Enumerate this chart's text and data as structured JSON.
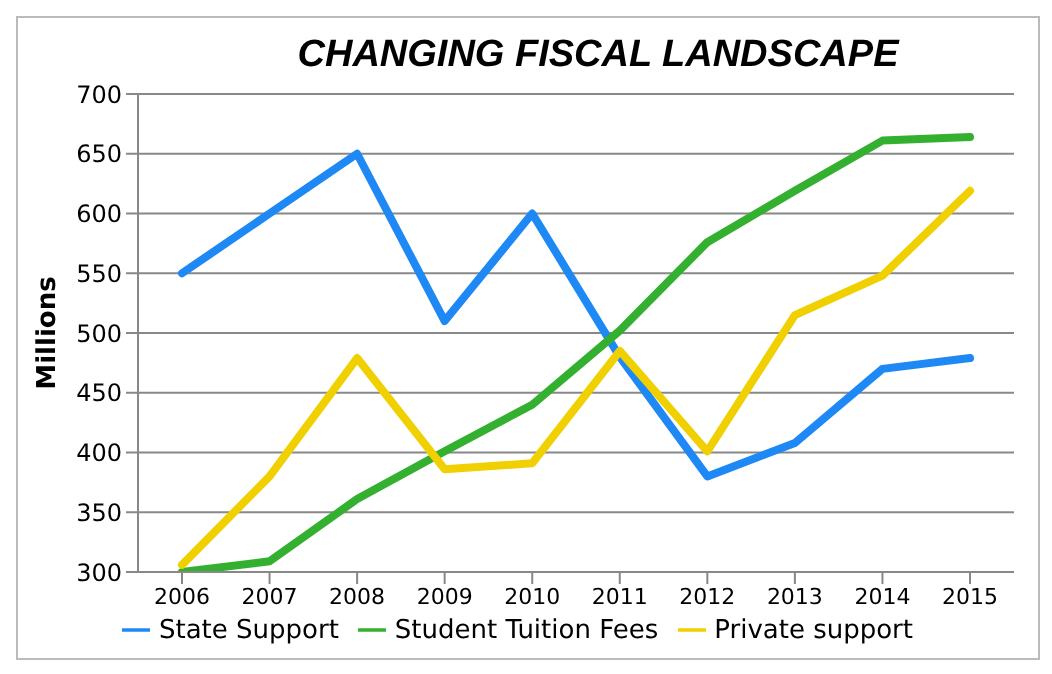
{
  "chart_data": {
    "type": "line",
    "title": "CHANGING FISCAL LANDSCAPE",
    "ylabel": "Millions",
    "categories": [
      "2006",
      "2007",
      "2008",
      "2009",
      "2010",
      "2011",
      "2012",
      "2013",
      "2014",
      "2015"
    ],
    "series": [
      {
        "name": "State Support",
        "color": "#1e88f5",
        "values": [
          550,
          600,
          650,
          510,
          600,
          480,
          380,
          408,
          470,
          479
        ]
      },
      {
        "name": "Student Tuition Fees",
        "color": "#33b02f",
        "values": [
          300,
          309,
          361,
          401,
          440,
          502,
          576,
          619,
          661,
          664
        ]
      },
      {
        "name": "Private support",
        "color": "#f0d000",
        "values": [
          306,
          380,
          479,
          386,
          391,
          485,
          401,
          515,
          548,
          619
        ]
      }
    ],
    "ylim": [
      300,
      700
    ],
    "yticks": [
      300,
      350,
      400,
      450,
      500,
      550,
      600,
      650,
      700
    ],
    "grid": "y",
    "legend": "bottom",
    "marker": "none",
    "line_style": "solid"
  }
}
